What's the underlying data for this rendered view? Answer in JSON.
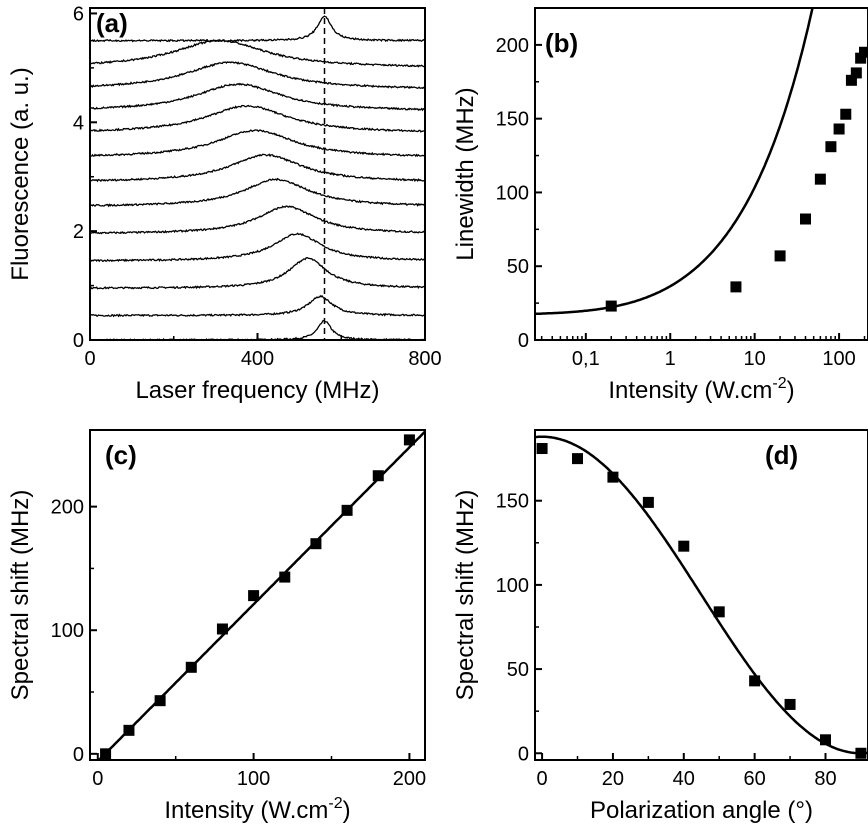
{
  "chart_data": [
    {
      "panel": "(a)",
      "type": "line",
      "xlabel": "Laser frequency (MHz)",
      "ylabel": "Fluorescence (a. u.)",
      "xlim": [
        0,
        800
      ],
      "ylim": [
        0,
        6.1
      ],
      "xticks": [
        0,
        400,
        800
      ],
      "yticks": [
        0,
        2,
        4,
        6
      ],
      "reference_line_x": 560,
      "series": [
        {
          "offset": 0.0,
          "center": 560,
          "width": 20,
          "amp": 0.35
        },
        {
          "offset": 0.45,
          "center": 550,
          "width": 35,
          "amp": 0.35
        },
        {
          "offset": 0.95,
          "center": 520,
          "width": 55,
          "amp": 0.55
        },
        {
          "offset": 1.45,
          "center": 495,
          "width": 70,
          "amp": 0.5
        },
        {
          "offset": 1.95,
          "center": 470,
          "width": 85,
          "amp": 0.5
        },
        {
          "offset": 2.45,
          "center": 445,
          "width": 95,
          "amp": 0.5
        },
        {
          "offset": 2.9,
          "center": 420,
          "width": 105,
          "amp": 0.5
        },
        {
          "offset": 3.35,
          "center": 395,
          "width": 115,
          "amp": 0.5
        },
        {
          "offset": 3.8,
          "center": 375,
          "width": 120,
          "amp": 0.5
        },
        {
          "offset": 4.2,
          "center": 355,
          "width": 125,
          "amp": 0.5
        },
        {
          "offset": 4.6,
          "center": 335,
          "width": 130,
          "amp": 0.5
        },
        {
          "offset": 5.0,
          "center": 310,
          "width": 135,
          "amp": 0.5
        },
        {
          "offset": 5.5,
          "center": 560,
          "width": 20,
          "amp": 0.45
        }
      ]
    },
    {
      "panel": "(b)",
      "type": "scatter",
      "xlabel": "Intensity (W.cm",
      "xlabel_sup": "-2",
      "xlabel_end": ")",
      "ylabel": "Linewidth (MHz)",
      "xscale": "log",
      "xlim": [
        0.025,
        220
      ],
      "ylim": [
        0,
        225
      ],
      "xticks": [
        0.1,
        1,
        10,
        100
      ],
      "xticklabels": [
        "0,1",
        "1",
        "10",
        "100"
      ],
      "yticks": [
        0,
        50,
        100,
        150,
        200
      ],
      "points": [
        {
          "x": 0.2,
          "y": 23
        },
        {
          "x": 6,
          "y": 36
        },
        {
          "x": 20,
          "y": 57
        },
        {
          "x": 40,
          "y": 82
        },
        {
          "x": 60,
          "y": 109
        },
        {
          "x": 80,
          "y": 131
        },
        {
          "x": 100,
          "y": 143
        },
        {
          "x": 120,
          "y": 153
        },
        {
          "x": 140,
          "y": 176
        },
        {
          "x": 160,
          "y": 181
        },
        {
          "x": 180,
          "y": 191
        },
        {
          "x": 200,
          "y": 195
        }
      ],
      "fit": {
        "model": "power_broadened",
        "y0": 17,
        "k": 3.6
      }
    },
    {
      "panel": "(c)",
      "type": "scatter",
      "xlabel": "Intensity (W.cm",
      "xlabel_sup": "-2",
      "xlabel_end": ")",
      "ylabel": "Spectral shift (MHz)",
      "xlim": [
        -5,
        210
      ],
      "ylim": [
        -5,
        262
      ],
      "xticks": [
        0,
        100,
        200
      ],
      "yticks": [
        0,
        100,
        200
      ],
      "points": [
        {
          "x": 5,
          "y": 0
        },
        {
          "x": 20,
          "y": 19
        },
        {
          "x": 40,
          "y": 43
        },
        {
          "x": 60,
          "y": 70
        },
        {
          "x": 80,
          "y": 101
        },
        {
          "x": 100,
          "y": 128
        },
        {
          "x": 120,
          "y": 143
        },
        {
          "x": 140,
          "y": 170
        },
        {
          "x": 160,
          "y": 197
        },
        {
          "x": 180,
          "y": 225
        },
        {
          "x": 200,
          "y": 254
        }
      ],
      "fit": {
        "model": "linear",
        "slope": 1.27,
        "intercept": -6
      }
    },
    {
      "panel": "(d)",
      "type": "scatter",
      "xlabel": "Polarization angle (°)",
      "ylabel": "Spectral shift (MHz)",
      "xlim": [
        -2,
        92
      ],
      "ylim": [
        -4,
        192
      ],
      "xticks": [
        0,
        20,
        40,
        60,
        80
      ],
      "yticks": [
        0,
        50,
        100,
        150
      ],
      "points": [
        {
          "x": 0,
          "y": 181
        },
        {
          "x": 10,
          "y": 175
        },
        {
          "x": 20,
          "y": 164
        },
        {
          "x": 30,
          "y": 149
        },
        {
          "x": 40,
          "y": 123
        },
        {
          "x": 50,
          "y": 84
        },
        {
          "x": 60,
          "y": 43
        },
        {
          "x": 70,
          "y": 29
        },
        {
          "x": 80,
          "y": 8
        },
        {
          "x": 90,
          "y": 0
        }
      ],
      "fit": {
        "model": "cos2",
        "amplitude": 188
      }
    }
  ]
}
